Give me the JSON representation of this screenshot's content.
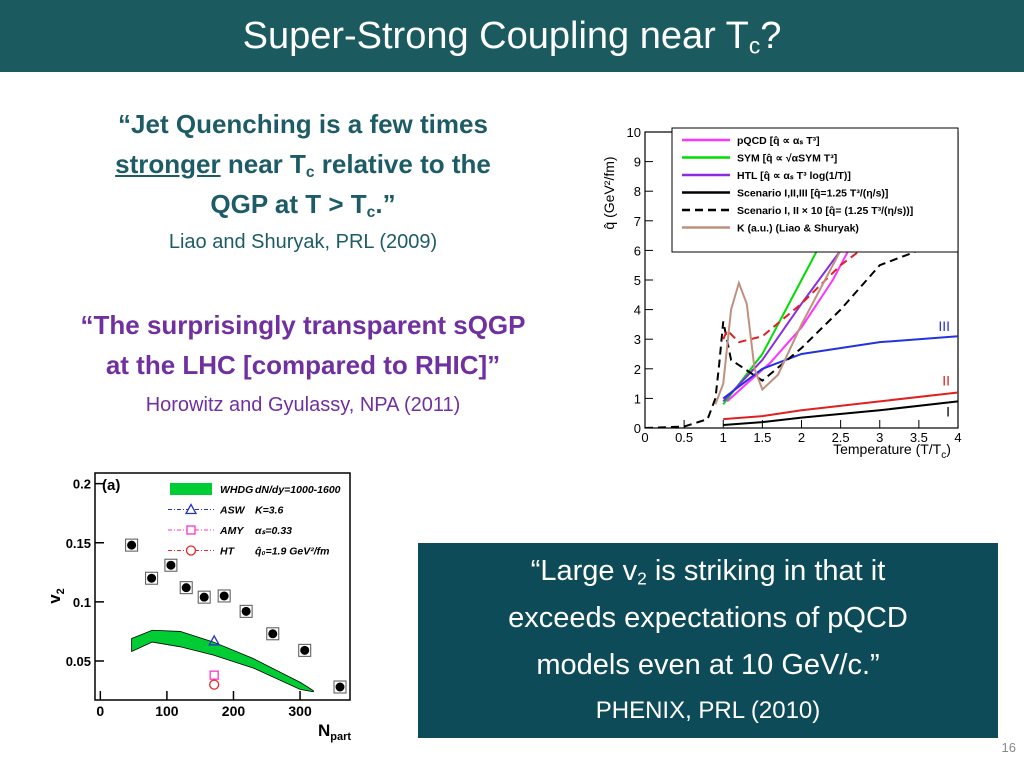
{
  "header": {
    "title": "Super-Strong Coupling near T",
    "title_sub": "c",
    "title_end": "?"
  },
  "quote1": {
    "line1": "“Jet Quenching is a few times",
    "line2_underlined": "stronger",
    "line2": " near T",
    "line2_sub": "c",
    "line2_end": " relative to the",
    "line3": "QGP at T > T",
    "line3_sub": "c",
    "line3_end": ".”",
    "citation": "Liao and Shuryak, PRL (2009)"
  },
  "quote2": {
    "line1": "“The surprisingly transparent sQGP",
    "line2": "at the LHC [compared to RHIC]”",
    "citation": "Horowitz and Gyulassy, NPA (2011)"
  },
  "quote3": {
    "line1": "“Large v",
    "line1_sub": "2",
    "line1_end": " is striking in that it",
    "line2": "exceeds expectations of pQCD",
    "line3": "models even at 10 GeV/c.”",
    "citation": "PHENIX, PRL (2010)"
  },
  "page_number": "16",
  "figure_qhat": {
    "y_label": "q̂ (GeV²/fm)",
    "x_label": "Temperature (T/T",
    "x_label_sub": "c",
    "x_label_end": ")",
    "xlim": [
      0,
      4
    ],
    "ylim": [
      0,
      10
    ],
    "xticks": [
      0,
      0.5,
      1,
      1.5,
      2,
      2.5,
      3,
      3.5,
      4
    ],
    "yticks": [
      0,
      1,
      2,
      3,
      4,
      5,
      6,
      7,
      8,
      9,
      10
    ],
    "series": [
      {
        "name": "pQCD [q̂ ∝ αₛ T³]",
        "color": "#ff33ff",
        "dash": false,
        "curves": [
          {
            "x": [
              1.05,
              1.3,
              1.6,
              2,
              2.4,
              2.6
            ],
            "y": [
              0.9,
              1.5,
              2.2,
              3.4,
              5,
              6
            ]
          }
        ]
      },
      {
        "name": "SYM [q̂ ∝ √αSYM T³]",
        "color": "#00dd00",
        "dash": false,
        "curves": [
          {
            "x": [
              1,
              1.5,
              2,
              2.2
            ],
            "y": [
              0.8,
              2.5,
              5,
              6
            ]
          }
        ]
      },
      {
        "name": "HTL [q̂ ∝ αₛ T³ log(1/T)]",
        "color": "#8a2be2",
        "dash": false,
        "curves": [
          {
            "x": [
              1,
              1.5,
              2,
              2.5
            ],
            "y": [
              0.9,
              2.3,
              4.2,
              6
            ]
          }
        ]
      },
      {
        "name": "Scenario I,II,III [q̂=1.25 T³/(η/s)]",
        "color": "#000000",
        "dash": false,
        "curves": [
          {
            "label": "I",
            "color": "#000000",
            "x": [
              1,
              1.5,
              2,
              3,
              4
            ],
            "y": [
              0.1,
              0.2,
              0.35,
              0.6,
              0.9
            ]
          },
          {
            "label": "II",
            "color": "#e02020",
            "x": [
              1,
              1.5,
              2,
              3,
              4
            ],
            "y": [
              0.3,
              0.4,
              0.6,
              0.9,
              1.2
            ]
          },
          {
            "label": "III",
            "color": "#2233dd",
            "x": [
              1,
              1.5,
              2,
              3,
              4
            ],
            "y": [
              1,
              2,
              2.5,
              2.9,
              3.1
            ]
          }
        ]
      },
      {
        "name": "Scenario I, II × 10 [q̂= (1.25 T³/(η/s))]",
        "color": "#000000",
        "dash": true,
        "curves": [
          {
            "color": "#000000",
            "x": [
              0,
              0.5,
              0.8,
              0.9,
              0.95,
              1,
              1.1,
              1.5,
              2,
              2.5,
              3,
              3.5
            ],
            "y": [
              0,
              0.05,
              0.3,
              1,
              2.2,
              3.6,
              2.3,
              1.6,
              2.7,
              4,
              5.5,
              6
            ]
          },
          {
            "color": "#e02020",
            "x": [
              1,
              1.05,
              1.2,
              1.5,
              2,
              2.5,
              2.75
            ],
            "y": [
              3,
              3.3,
              2.9,
              3.1,
              4.2,
              5.5,
              6
            ]
          }
        ]
      },
      {
        "name": "K (a.u.) (Liao & Shuryak)",
        "color": "#c0907f",
        "dash": false,
        "curves": [
          {
            "x": [
              0.9,
              1,
              1.1,
              1.2,
              1.3,
              1.4,
              1.5,
              1.7,
              2,
              2.3,
              2.5
            ],
            "y": [
              0.8,
              1.5,
              4,
              4.9,
              4.2,
              2,
              1.3,
              1.8,
              3.5,
              5,
              6
            ]
          }
        ]
      }
    ]
  },
  "figure_v2": {
    "panel_label": "(a)",
    "y_label": "v",
    "y_label_sub": "2",
    "x_label": "N",
    "x_label_sub": "part",
    "xlim": [
      -8,
      375
    ],
    "ylim": [
      0.017,
      0.209
    ],
    "xticks": [
      0,
      100,
      200,
      300
    ],
    "yticks": [
      0.05,
      0.1,
      0.15,
      0.2
    ],
    "data": {
      "x": [
        47,
        77,
        106,
        129,
        156,
        186,
        219,
        259,
        307,
        360
      ],
      "y": [
        0.148,
        0.12,
        0.131,
        0.112,
        0.104,
        0.105,
        0.092,
        0.073,
        0.059,
        0.028
      ]
    },
    "legend": [
      {
        "name": "WHDG",
        "label": "dN/dy=1000-1600",
        "color": "#00cc33",
        "marker": "band",
        "x": [
          47,
          78,
          120,
          170,
          230,
          300,
          320
        ],
        "upper": [
          0.069,
          0.076,
          0.075,
          0.066,
          0.052,
          0.032,
          0.025
        ],
        "lower": [
          0.058,
          0.066,
          0.062,
          0.055,
          0.044,
          0.026,
          0.024
        ]
      },
      {
        "name": "ASW",
        "label": "K=3.6",
        "color": "#2233cc",
        "marker": "triangle",
        "x": [
          171
        ],
        "y": [
          0.067
        ]
      },
      {
        "name": "AMY",
        "label": "αₛ=0.33",
        "color": "#ff33cc",
        "marker": "square",
        "x": [
          171
        ],
        "y": [
          0.038
        ]
      },
      {
        "name": "HT",
        "label": "q̂₀=1.9 GeV²/fm",
        "color": "#ee2222",
        "marker": "circle",
        "x": [
          171
        ],
        "y": [
          0.03
        ]
      }
    ]
  }
}
